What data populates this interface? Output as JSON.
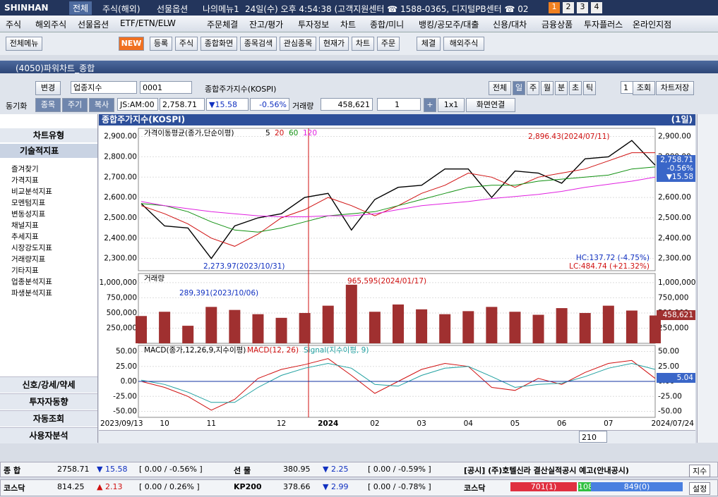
{
  "topbar": {
    "logo": "SHINHAN",
    "tabs": [
      "전체",
      "주식(해외)",
      "선물옵션",
      "나의메뉴1"
    ],
    "info": "24일(수) 오후 4:54:38 (고객지원센터 ☎ 1588-0365, 디지털PB센터 ☎ 02",
    "pages": [
      "1",
      "2",
      "3",
      "4"
    ]
  },
  "menu": [
    "주식",
    "해외주식",
    "선물옵션",
    "ETF/ETN/ELW",
    "주문체결",
    "잔고/평가",
    "투자정보",
    "차트",
    "종합/미니",
    "뱅킹/공모주/대출",
    "신용/대차",
    "금융상품",
    "투자플러스",
    "온라인지점"
  ],
  "toolbar": [
    "전체메뉴",
    "NEW",
    "등록",
    "주식",
    "종합화면",
    "종목검색",
    "관심종목",
    "현재가",
    "차트",
    "주문",
    "체결",
    "해외주식"
  ],
  "window_title": "(4050)파워차트_종합",
  "controls1": {
    "change": "변경",
    "market": "업종지수",
    "code": "0001",
    "name": "종합주가지수(KOSPI)",
    "periods": [
      "전체",
      "일",
      "주",
      "월",
      "분",
      "초",
      "틱"
    ],
    "count": "1",
    "query": "조회",
    "save": "차트저장"
  },
  "controls2": {
    "sync": "동기화",
    "buttons": [
      "종목",
      "주기",
      "복사"
    ],
    "time": "JS:AM:00",
    "price": "2,758.71",
    "change": "▼15.58",
    "rate": "-0.56%",
    "volume_label": "거래량",
    "volume": "458,621",
    "layout_count": "1",
    "plus": "+",
    "grid": "1x1",
    "link": "화면연결"
  },
  "left_panel": {
    "chart_type": "차트유형",
    "indicators": "기술적지표",
    "tree": [
      "즐겨찾기",
      "가격지표",
      "비교분석지표",
      "모멘텀지표",
      "변동성지표",
      "채널지표",
      "추세지표",
      "시장강도지표",
      "거래량지표",
      "기타지표",
      "업종분석지표",
      "파생분석지표"
    ],
    "bottom": [
      "신호/강세/약세",
      "투자자동향",
      "자동조회",
      "사용자분석"
    ]
  },
  "chart_header": {
    "title": "종합주가지수(KOSPI)",
    "period": "(1일)"
  },
  "scroll": {
    "count": "210"
  },
  "status": {
    "row1": [
      "종 합",
      "2758.71",
      "▼ 15.58",
      "[ 0.00  / -0.56% ]",
      "선 물",
      "380.95",
      "▼ 2.25",
      "[ 0.00  / -0.59% ]",
      "[공시] (주)호텔신라 결산실적공시 예고(안내공시)",
      "지수"
    ],
    "row2": [
      "코스닥",
      "814.25",
      "▲ 2.13",
      "[ 0.00  / 0.26% ]",
      "KP200",
      "378.66",
      "▼ 2.99",
      "[ 0.00  / -0.78% ]",
      "코스닥",
      "701(1)",
      "108",
      "849(0)",
      "설정"
    ]
  },
  "chart_data": [
    {
      "type": "line",
      "title": "가격이동평균(종가,단순이평)",
      "ylim": [
        2240,
        2940
      ],
      "yticks": [
        {
          "value": 2900,
          "label": "2,900.00"
        },
        {
          "value": 2800,
          "label": "2,800.00"
        },
        {
          "value": 2700,
          "label": "2,700.00"
        },
        {
          "value": 2600,
          "label": "2,600.00"
        },
        {
          "value": 2500,
          "label": "2,500.00"
        },
        {
          "value": 2400,
          "label": "2,400.00"
        },
        {
          "value": 2300,
          "label": "2,300.00"
        }
      ],
      "series": [
        {
          "name": "5",
          "color": "#000000",
          "values": [
            2570,
            2460,
            2450,
            2300,
            2460,
            2500,
            2520,
            2600,
            2620,
            2440,
            2590,
            2650,
            2660,
            2740,
            2740,
            2600,
            2730,
            2720,
            2670,
            2790,
            2800,
            2880,
            2758.71
          ]
        },
        {
          "name": "20",
          "color": "#d01010",
          "values": [
            2560,
            2520,
            2470,
            2400,
            2360,
            2420,
            2500,
            2540,
            2600,
            2560,
            2510,
            2560,
            2620,
            2660,
            2720,
            2700,
            2650,
            2700,
            2720,
            2740,
            2780,
            2820,
            2820
          ]
        },
        {
          "name": "60",
          "color": "#109010",
          "values": [
            2570,
            2560,
            2530,
            2480,
            2440,
            2430,
            2450,
            2480,
            2510,
            2520,
            2530,
            2560,
            2590,
            2620,
            2650,
            2660,
            2660,
            2680,
            2690,
            2700,
            2710,
            2740,
            2750
          ]
        },
        {
          "name": "120",
          "color": "#e020e0",
          "values": [
            2580,
            2560,
            2545,
            2530,
            2520,
            2510,
            2505,
            2505,
            2510,
            2510,
            2520,
            2540,
            2560,
            2570,
            2580,
            2595,
            2605,
            2615,
            2630,
            2650,
            2665,
            2680,
            2700
          ]
        }
      ],
      "annotations": [
        "2,896.43(2024/07/11)",
        "2,273.97(2023/10/31)",
        "HC:137.72 (-4.75%)",
        "LC:484.74 (+21.32%)"
      ],
      "last_label": [
        "2,758.71",
        "-0.56%",
        "▼15.58"
      ]
    },
    {
      "type": "bar",
      "title": "거래량",
      "ylim": [
        0,
        1150000
      ],
      "color": "#a03030",
      "yticks": [
        {
          "value": 1000000,
          "label": "1,000,000"
        },
        {
          "value": 750000,
          "label": "750,000"
        },
        {
          "value": 500000,
          "label": "500,000"
        },
        {
          "value": 250000,
          "label": "250,000"
        }
      ],
      "values": [
        450000,
        520000,
        289391,
        600000,
        550000,
        480000,
        420000,
        500000,
        620000,
        965595,
        520000,
        640000,
        560000,
        480000,
        530000,
        600000,
        520000,
        470000,
        580000,
        500000,
        620000,
        540000,
        458621
      ],
      "annotations": [
        "289,391(2023/10/06)",
        "965,595(2024/01/17)"
      ],
      "last_label": "458,621"
    },
    {
      "type": "line",
      "title": "MACD(종가,12,26,9,지수이평)",
      "ylim": [
        -60,
        60
      ],
      "yticks": [
        {
          "value": 50,
          "label": "50.00"
        },
        {
          "value": 25,
          "label": "25.00"
        },
        {
          "value": 0,
          "label": "0.00"
        },
        {
          "value": -25,
          "label": "-25.00"
        },
        {
          "value": -50,
          "label": "-50.00"
        }
      ],
      "categories": [
        "2023/09/13",
        "10",
        null,
        "11",
        null,
        null,
        "12",
        null,
        "2024",
        null,
        "02",
        null,
        "03",
        null,
        "04",
        null,
        "05",
        null,
        "06",
        null,
        "07",
        null,
        "2024/07/24"
      ],
      "series": [
        {
          "name": "MACD(12, 26)",
          "color": "#d01010",
          "values": [
            0,
            -10,
            -25,
            -48,
            -30,
            5,
            20,
            28,
            38,
            10,
            -20,
            0,
            20,
            30,
            25,
            -10,
            -15,
            5,
            -5,
            15,
            30,
            35,
            5
          ]
        },
        {
          "name": "Signal(지수이평, 9)",
          "color": "#20a0a0",
          "values": [
            2,
            -5,
            -18,
            -35,
            -35,
            -10,
            10,
            22,
            30,
            22,
            -5,
            -8,
            10,
            22,
            25,
            8,
            -10,
            -5,
            -3,
            8,
            22,
            30,
            20
          ]
        }
      ],
      "last_label": "5.04"
    }
  ]
}
